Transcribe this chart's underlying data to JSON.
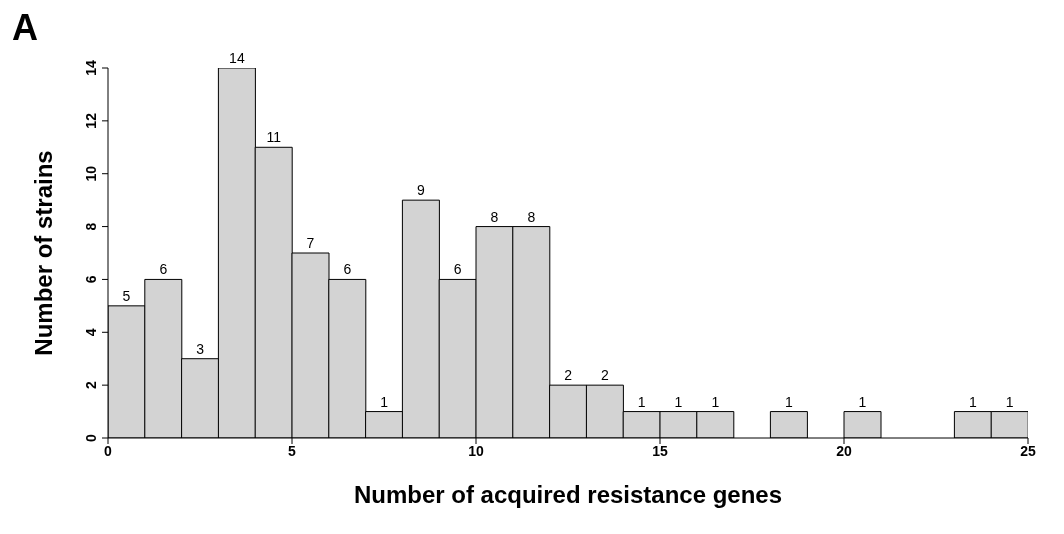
{
  "chart_data": {
    "type": "histogram",
    "title": "A",
    "xlabel": "Number of acquired resistance genes",
    "ylabel": "Number of strains",
    "bins": [
      0,
      1,
      2,
      3,
      4,
      5,
      6,
      7,
      8,
      9,
      10,
      11,
      12,
      13,
      14,
      15,
      16,
      17,
      18,
      19,
      20,
      21,
      22,
      23,
      24,
      25
    ],
    "values": [
      5,
      6,
      3,
      14,
      11,
      7,
      6,
      1,
      9,
      6,
      8,
      8,
      2,
      2,
      1,
      1,
      1,
      0,
      1,
      0,
      1,
      0,
      0,
      1,
      1
    ],
    "value_labels": [
      "5",
      "6",
      "3",
      "14",
      "11",
      "7",
      "6",
      "1",
      "9",
      "6",
      "8",
      "8",
      "2",
      "2",
      "1",
      "1",
      "1",
      null,
      "1",
      null,
      "1",
      null,
      null,
      "1",
      "1"
    ],
    "color": "#d3d3d3",
    "xlim": [
      0,
      25
    ],
    "xticks": [
      0,
      5,
      10,
      15,
      20,
      25
    ],
    "ylim": [
      0,
      14
    ],
    "yticks": [
      0,
      2,
      4,
      6,
      8,
      10,
      12,
      14
    ],
    "grid": false
  }
}
